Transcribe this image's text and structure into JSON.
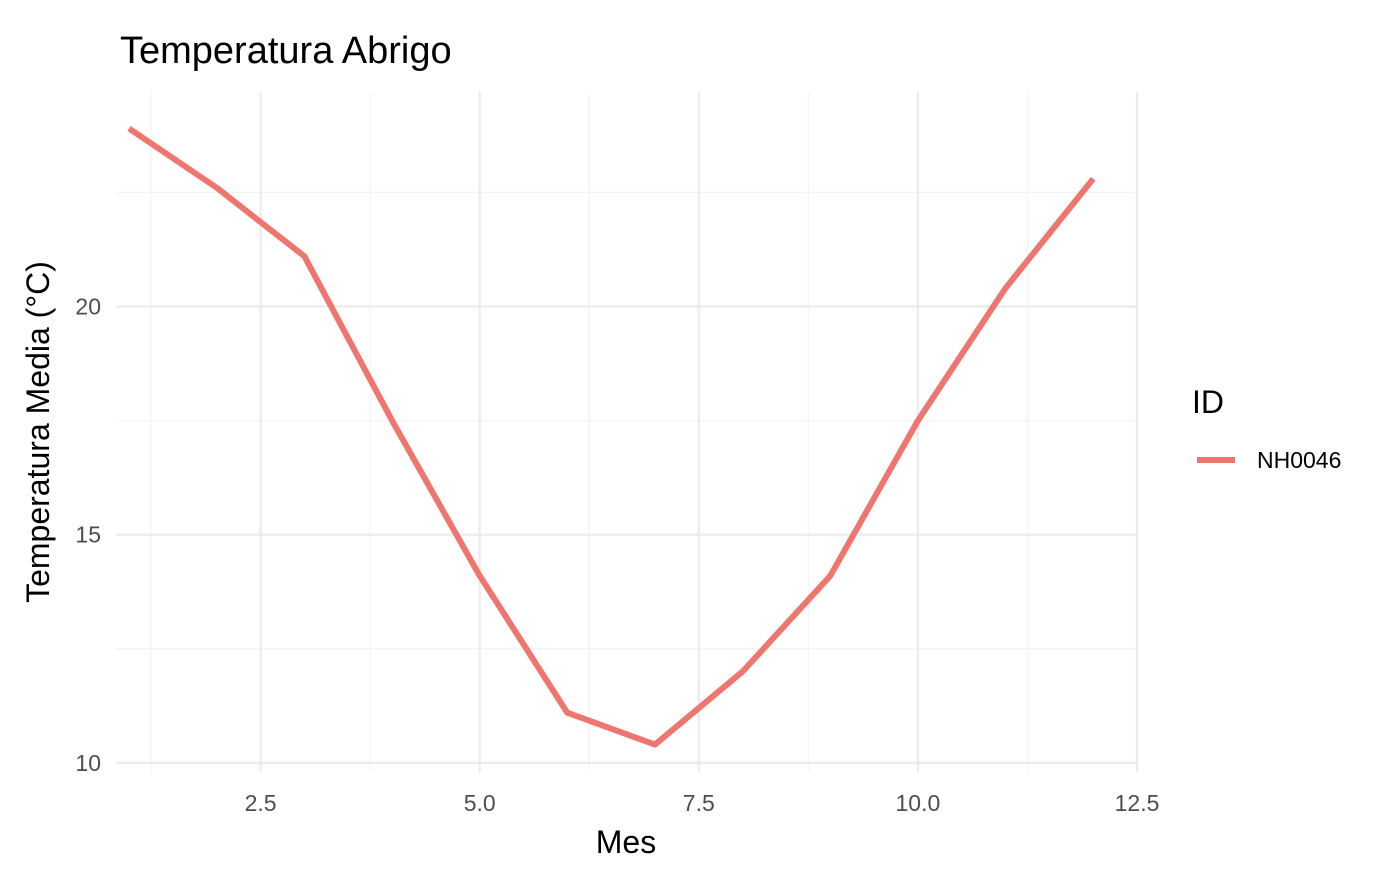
{
  "chart_data": {
    "type": "line",
    "title": "Temperatura Abrigo",
    "xlabel": "Mes",
    "ylabel": "Temperatura Media (°C)",
    "xlim": [
      0.85,
      12.5
    ],
    "ylim": [
      9.8,
      24.7
    ],
    "x_ticks": [
      2.5,
      5.0,
      7.5,
      10.0,
      12.5
    ],
    "x_tick_labels": [
      "2.5",
      "5.0",
      "7.5",
      "10.0",
      "12.5"
    ],
    "x_minor_ticks": [
      1.25,
      3.75,
      6.25,
      8.75,
      11.25
    ],
    "y_ticks": [
      10,
      15,
      20
    ],
    "y_tick_labels": [
      "10",
      "15",
      "20"
    ],
    "y_minor_ticks": [
      12.5,
      17.5,
      22.5
    ],
    "grid": true,
    "legend": {
      "title": "ID",
      "placement": "right"
    },
    "series": [
      {
        "name": "NH0046",
        "color": "#ee766f",
        "x": [
          1,
          2,
          3,
          4,
          5,
          6,
          7,
          8,
          9,
          10,
          11,
          12
        ],
        "y": [
          23.9,
          22.6,
          21.1,
          17.5,
          14.1,
          11.1,
          10.4,
          12.0,
          14.1,
          17.5,
          20.4,
          22.8
        ]
      }
    ]
  }
}
